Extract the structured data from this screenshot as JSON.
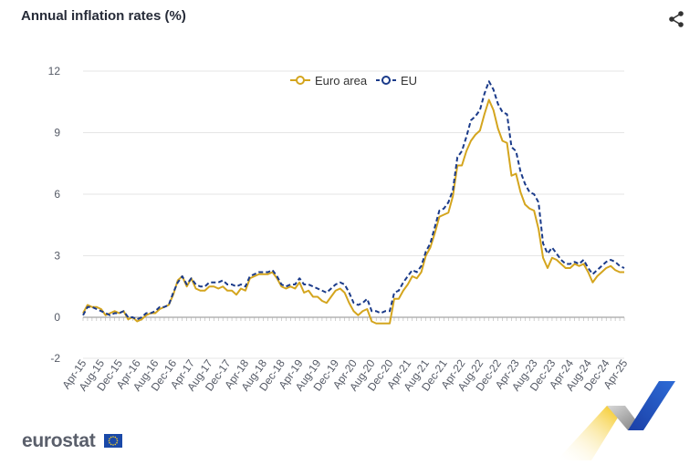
{
  "header": {
    "title": "Annual inflation rates (%)"
  },
  "icons": {
    "share": "share-icon",
    "flag": "eu-flag-icon"
  },
  "footer": {
    "logo": "eurostat"
  },
  "colors": {
    "euro_area": "#d4a51e",
    "eu": "#1b3b8a",
    "axis": "#8c8c8c",
    "grid": "#e6e6e6"
  },
  "chart_data": {
    "type": "line",
    "title": "Annual inflation rates (%)",
    "xlabel": "",
    "ylabel": "",
    "ylim": [
      -2,
      12
    ],
    "yticks": [
      12,
      9,
      6,
      3,
      0,
      -2
    ],
    "grid": true,
    "legend_position": "top-center",
    "x_start": "Apr-15",
    "x_end": "Apr-25",
    "tick_labels": [
      "Apr-15",
      "Aug-15",
      "Dec-15",
      "Apr-16",
      "Aug-16",
      "Dec-16",
      "Apr-17",
      "Aug-17",
      "Dec-17",
      "Apr-18",
      "Aug-18",
      "Dec-18",
      "Apr-19",
      "Aug-19",
      "Dec-19",
      "Apr-20",
      "Aug-20",
      "Dec-20",
      "Apr-21",
      "Aug-21",
      "Dec-21",
      "Apr-22",
      "Aug-22",
      "Dec-22",
      "Apr-23",
      "Aug-23",
      "Dec-23",
      "Apr-24",
      "Aug-24",
      "Dec-24",
      "Apr-25"
    ],
    "series": [
      {
        "name": "Euro area",
        "color": "#d4a51e",
        "dashed": false,
        "values": [
          0.2,
          0.6,
          0.5,
          0.5,
          0.4,
          0.1,
          0.2,
          0.3,
          0.2,
          0.3,
          -0.1,
          0.0,
          -0.2,
          -0.1,
          0.1,
          0.2,
          0.2,
          0.4,
          0.5,
          0.6,
          1.1,
          1.8,
          2.0,
          1.5,
          1.9,
          1.4,
          1.3,
          1.3,
          1.5,
          1.5,
          1.4,
          1.5,
          1.3,
          1.3,
          1.1,
          1.4,
          1.3,
          1.9,
          2.0,
          2.1,
          2.1,
          2.1,
          2.2,
          1.9,
          1.5,
          1.4,
          1.5,
          1.4,
          1.7,
          1.2,
          1.3,
          1.0,
          1.0,
          0.8,
          0.7,
          1.0,
          1.3,
          1.4,
          1.2,
          0.7,
          0.3,
          0.1,
          0.3,
          0.4,
          -0.2,
          -0.3,
          -0.3,
          -0.3,
          -0.3,
          0.9,
          0.9,
          1.3,
          1.6,
          2.0,
          1.9,
          2.2,
          3.0,
          3.4,
          4.1,
          4.9,
          5.0,
          5.1,
          5.9,
          7.4,
          7.4,
          8.1,
          8.6,
          8.9,
          9.1,
          9.9,
          10.6,
          10.1,
          9.2,
          8.6,
          8.5,
          6.9,
          7.0,
          6.1,
          5.5,
          5.3,
          5.2,
          4.3,
          2.9,
          2.4,
          2.9,
          2.8,
          2.6,
          2.4,
          2.4,
          2.6,
          2.5,
          2.6,
          2.2,
          1.7,
          2.0,
          2.2,
          2.4,
          2.5,
          2.3,
          2.2,
          2.2
        ]
      },
      {
        "name": "EU",
        "color": "#1b3b8a",
        "dashed": true,
        "values": [
          0.1,
          0.5,
          0.5,
          0.4,
          0.3,
          0.2,
          0.1,
          0.2,
          0.2,
          0.3,
          0.0,
          0.0,
          -0.1,
          0.0,
          0.2,
          0.2,
          0.3,
          0.5,
          0.5,
          0.6,
          1.2,
          1.7,
          2.0,
          1.6,
          1.9,
          1.6,
          1.5,
          1.5,
          1.7,
          1.7,
          1.7,
          1.8,
          1.6,
          1.6,
          1.5,
          1.6,
          1.5,
          2.0,
          2.1,
          2.2,
          2.2,
          2.2,
          2.3,
          2.0,
          1.6,
          1.5,
          1.6,
          1.6,
          1.9,
          1.6,
          1.6,
          1.5,
          1.4,
          1.3,
          1.2,
          1.4,
          1.6,
          1.7,
          1.6,
          1.2,
          0.7,
          0.6,
          0.7,
          0.9,
          0.3,
          0.3,
          0.2,
          0.3,
          0.3,
          1.2,
          1.3,
          1.7,
          2.0,
          2.3,
          2.2,
          2.5,
          3.2,
          3.6,
          4.4,
          5.2,
          5.3,
          5.6,
          6.2,
          7.8,
          8.1,
          8.8,
          9.6,
          9.8,
          10.1,
          10.9,
          11.5,
          11.1,
          10.4,
          10.0,
          9.9,
          8.3,
          8.1,
          7.1,
          6.5,
          6.1,
          6.0,
          5.6,
          3.6,
          3.1,
          3.4,
          3.1,
          2.8,
          2.6,
          2.6,
          2.7,
          2.6,
          2.8,
          2.4,
          2.1,
          2.3,
          2.5,
          2.7,
          2.8,
          2.7,
          2.5,
          2.4
        ]
      }
    ]
  }
}
